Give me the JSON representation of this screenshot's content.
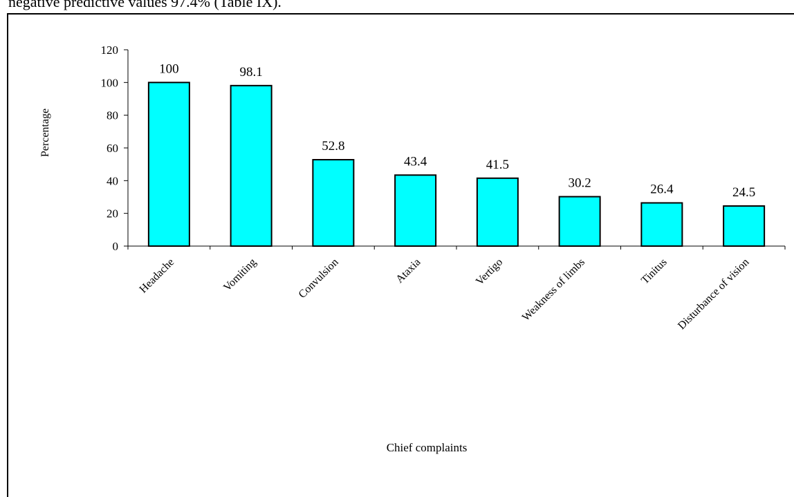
{
  "page_text": {
    "cut_line": "negative predictive values 97.4% (Table IX)."
  },
  "chart_data": {
    "type": "bar",
    "title": "",
    "xlabel": "Chief complaints",
    "ylabel": "Percentage",
    "categories": [
      "Headache",
      "Vomiting",
      "Convulsion",
      "Ataxia",
      "Vertigo",
      "Weakness of limbs",
      "Tinitus",
      "Disturbance of vision"
    ],
    "values": [
      100,
      98.1,
      52.8,
      43.4,
      41.5,
      30.2,
      26.4,
      24.5
    ],
    "value_labels": [
      "100",
      "98.1",
      "52.8",
      "43.4",
      "41.5",
      "30.2",
      "26.4",
      "24.5"
    ],
    "ylim": [
      0,
      120
    ],
    "yticks": [
      "0",
      "20",
      "40",
      "60",
      "80",
      "100",
      "120"
    ],
    "grid": false,
    "legend": "none",
    "colors": {
      "bar_fill": "#00FFFF",
      "bar_stroke": "#000000"
    }
  }
}
